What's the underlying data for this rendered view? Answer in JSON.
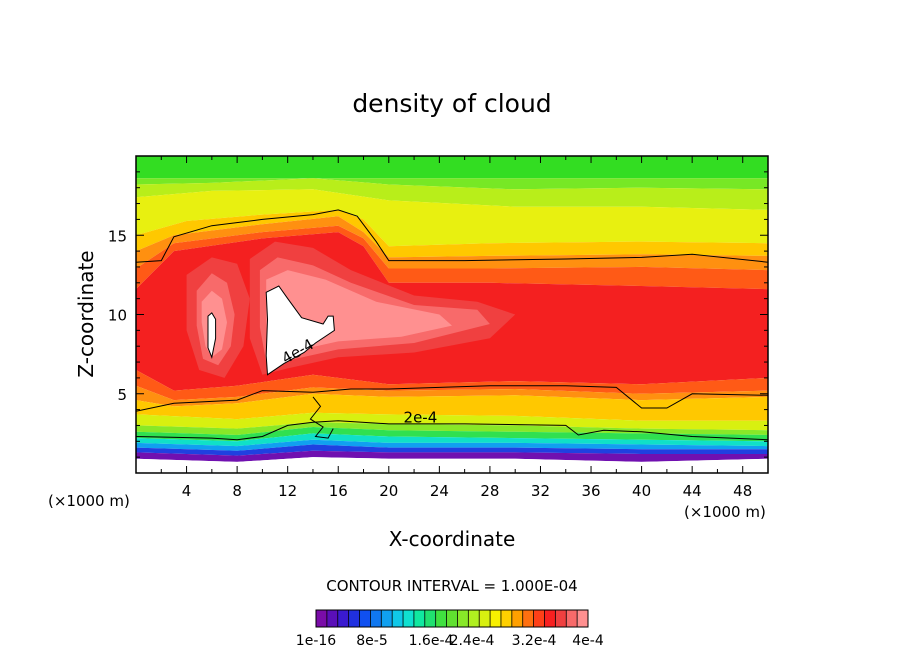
{
  "chart_data": {
    "type": "heatmap",
    "title": "density of cloud",
    "xlabel": "X-coordinate",
    "ylabel": "Z-coordinate",
    "x_unit": "(×1000 m)",
    "xlim": [
      0,
      50
    ],
    "ylim": [
      0,
      20
    ],
    "x_ticks": [
      4,
      8,
      12,
      16,
      20,
      24,
      28,
      32,
      36,
      40,
      44,
      48
    ],
    "y_ticks": [
      5,
      10,
      15
    ],
    "contour_interval_label": "CONTOUR INTERVAL = 1.000E-04",
    "contour_labels": [
      {
        "text": "4e-4",
        "x": 13,
        "z": 7.4
      },
      {
        "text": "2e-4",
        "x": 22.5,
        "z": 3.2
      }
    ],
    "colorbar": {
      "tick_labels": [
        "1e-16",
        "8e-5",
        "1.6e-4",
        "2.4e-4",
        "3.2e-4",
        "4e-4"
      ],
      "tick_values": [
        0,
        8e-05,
        0.00016,
        0.00024,
        0.00032,
        0.0004
      ],
      "levels": 22,
      "colors": [
        "#7a0ca8",
        "#5a0fb8",
        "#3a1ad0",
        "#2030e0",
        "#1050f0",
        "#1078f0",
        "#10a0f0",
        "#10c8e8",
        "#10e0d0",
        "#10e8a0",
        "#20e070",
        "#40e040",
        "#60e030",
        "#88e828",
        "#b0f020",
        "#d8f010",
        "#f8f000",
        "#ffd000",
        "#ffa000",
        "#ff7010",
        "#ff4018",
        "#f82020",
        "#f04040",
        "#f86a6a",
        "#ff9090"
      ],
      "peak_color": "#ffffff"
    },
    "bands": [
      {
        "name": "purple",
        "color": "#8000b0",
        "lower": [
          [
            0,
            1.4
          ],
          [
            6,
            1.3
          ],
          [
            10,
            1.2
          ],
          [
            14,
            1.3
          ],
          [
            20,
            1.2
          ],
          [
            30,
            1.3
          ],
          [
            40,
            1.2
          ],
          [
            50,
            1.3
          ]
        ],
        "upper": [
          [
            0,
            1.5
          ],
          [
            6,
            1.3
          ],
          [
            10,
            1.1
          ],
          [
            14,
            1.5
          ],
          [
            20,
            1.2
          ],
          [
            30,
            1.3
          ],
          [
            40,
            1.2
          ],
          [
            50,
            1.3
          ]
        ]
      }
    ]
  }
}
